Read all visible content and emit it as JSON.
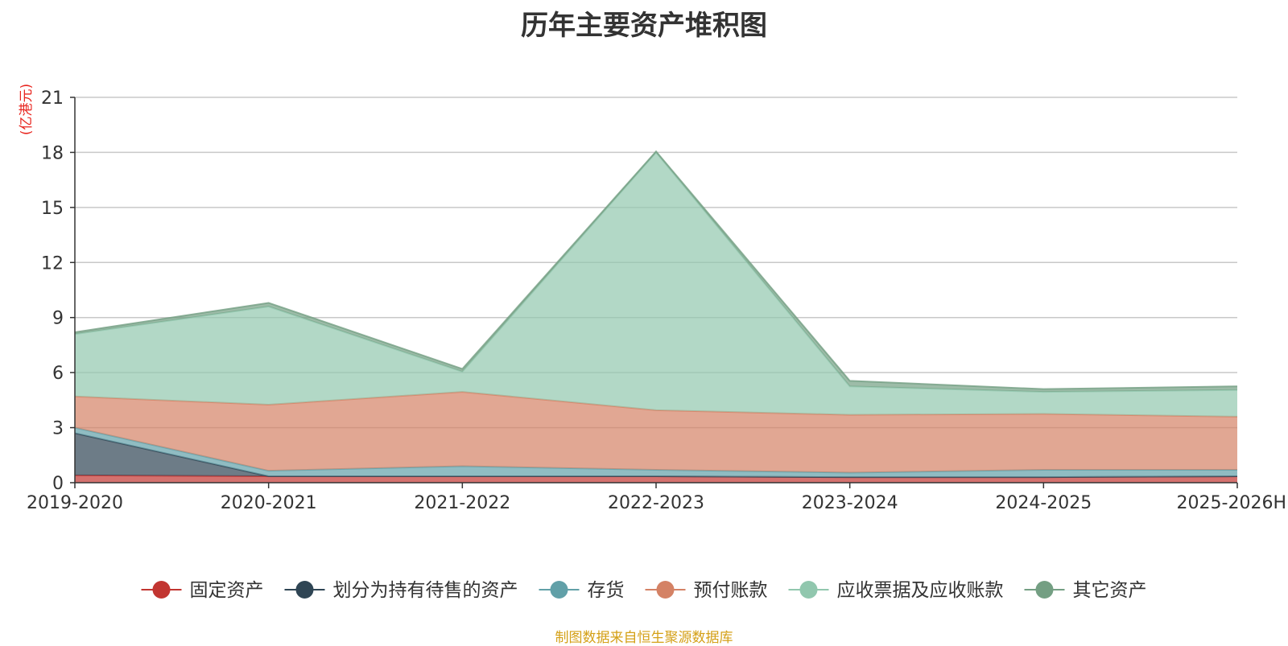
{
  "page": {
    "title": "历年主要资产堆积图",
    "source_note": "制图数据来自恒生聚源数据库"
  },
  "chart_data": {
    "type": "area",
    "stacked": true,
    "title": "历年主要资产堆积图",
    "unit_label": "(亿港元)",
    "unit_color": "#e8251f",
    "categories": [
      "2019-2020",
      "2020-2021",
      "2021-2022",
      "2022-2023",
      "2023-2024",
      "2024-2025",
      "2025-2026H"
    ],
    "ylim": [
      0,
      21
    ],
    "yticks": [
      0,
      3,
      6,
      9,
      12,
      15,
      18,
      21
    ],
    "grid": true,
    "legend_position": "bottom",
    "series": [
      {
        "name": "固定资产",
        "color": "#c23531",
        "values": [
          0.4,
          0.35,
          0.35,
          0.35,
          0.3,
          0.3,
          0.35
        ]
      },
      {
        "name": "划分为持有待售的资产",
        "color": "#2f4554",
        "values": [
          2.3,
          0,
          0,
          0,
          0,
          0,
          0
        ]
      },
      {
        "name": "存货",
        "color": "#61a0a8",
        "values": [
          0.3,
          0.3,
          0.55,
          0.35,
          0.25,
          0.4,
          0.35
        ]
      },
      {
        "name": "预付账款",
        "color": "#d48265",
        "values": [
          1.7,
          3.6,
          4.05,
          3.25,
          3.15,
          3.05,
          2.9
        ]
      },
      {
        "name": "应收票据及应收账款",
        "color": "#91c7ae",
        "values": [
          3.4,
          5.35,
          1.1,
          14.05,
          1.55,
          1.2,
          1.45
        ]
      },
      {
        "name": "其它资产",
        "color": "#749f83",
        "values": [
          0.1,
          0.2,
          0.15,
          0.05,
          0.3,
          0.15,
          0.2
        ]
      }
    ]
  }
}
